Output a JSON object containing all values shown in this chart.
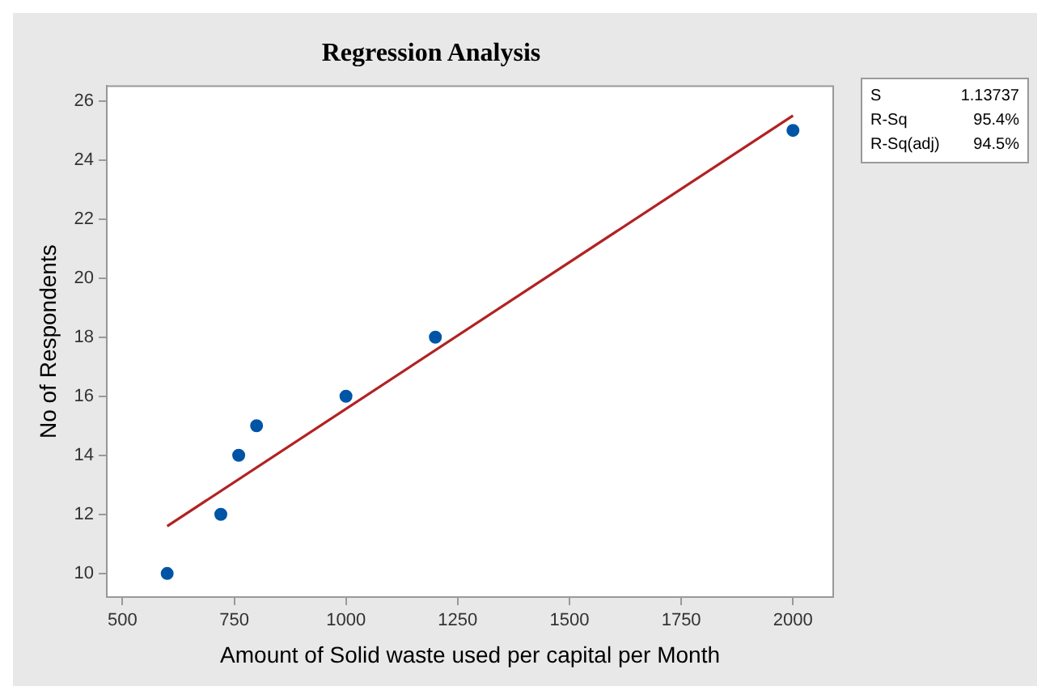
{
  "chart_data": {
    "type": "scatter",
    "title": "Regression Analysis",
    "xlabel": "Amount of Solid waste used per capital per Month",
    "ylabel": "No of Respondents",
    "annotations": [
      "S",
      "1.13737",
      "R-Sq",
      "95.4%",
      "R-Sq(adj)",
      "94.5%"
    ],
    "x": [
      600,
      720,
      760,
      800,
      1000,
      1200,
      2000
    ],
    "series": [
      {
        "color": "#0054a6",
        "marker": "circle",
        "values": [
          10,
          12,
          14,
          15,
          16,
          18,
          25
        ]
      },
      {
        "type": "line",
        "color": "#b22222",
        "marker": "none",
        "x": [
          600,
          2000
        ],
        "values": [
          11.6,
          25.5
        ]
      }
    ],
    "grid": false,
    "legend": false,
    "xlim": [
      465,
      2090
    ],
    "xticks": [
      500,
      750,
      1000,
      1250,
      1500,
      1750,
      2000
    ],
    "ylim": [
      9.2,
      26.5
    ],
    "yticks": [
      10,
      12,
      14,
      16,
      18,
      20,
      22,
      24,
      26
    ]
  }
}
